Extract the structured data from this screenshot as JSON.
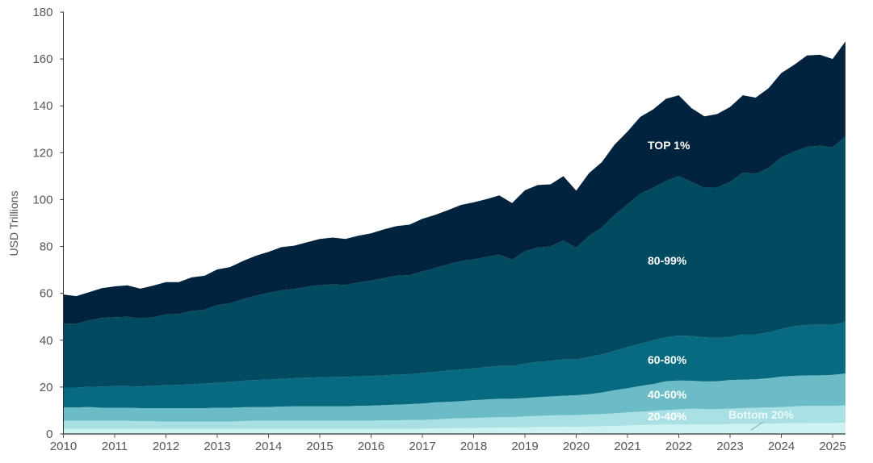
{
  "chart_data": {
    "type": "area",
    "stacked": true,
    "title": "",
    "xlabel": "",
    "ylabel": "USD Trillions",
    "ylim": [
      0,
      180
    ],
    "yticks": [
      "0",
      "20",
      "40",
      "60",
      "80",
      "100",
      "120",
      "140",
      "160",
      "180"
    ],
    "xticks": [
      "2010",
      "2011",
      "2012",
      "2013",
      "2014",
      "2015",
      "2016",
      "2017",
      "2018",
      "2019",
      "2020",
      "2021",
      "2022",
      "2023",
      "2024",
      "2025"
    ],
    "grid": false,
    "legend": "inline labels",
    "x": [
      "2010Q1",
      "2010Q2",
      "2010Q3",
      "2010Q4",
      "2011Q1",
      "2011Q2",
      "2011Q3",
      "2011Q4",
      "2012Q1",
      "2012Q2",
      "2012Q3",
      "2012Q4",
      "2013Q1",
      "2013Q2",
      "2013Q3",
      "2013Q4",
      "2014Q1",
      "2014Q2",
      "2014Q3",
      "2014Q4",
      "2015Q1",
      "2015Q2",
      "2015Q3",
      "2015Q4",
      "2016Q1",
      "2016Q2",
      "2016Q3",
      "2016Q4",
      "2017Q1",
      "2017Q2",
      "2017Q3",
      "2017Q4",
      "2018Q1",
      "2018Q2",
      "2018Q3",
      "2018Q4",
      "2019Q1",
      "2019Q2",
      "2019Q3",
      "2019Q4",
      "2020Q1",
      "2020Q2",
      "2020Q3",
      "2020Q4",
      "2021Q1",
      "2021Q2",
      "2021Q3",
      "2021Q4",
      "2022Q1",
      "2022Q2",
      "2022Q3",
      "2022Q4",
      "2023Q1",
      "2023Q2",
      "2023Q3",
      "2023Q4",
      "2024Q1",
      "2024Q2",
      "2024Q3",
      "2024Q4",
      "2025Q1",
      "2025Q2"
    ],
    "series": [
      {
        "name": "Bottom 20%",
        "color": "#cdf2f2",
        "values": [
          2.2,
          2.2,
          2.2,
          2.2,
          2.2,
          2.2,
          2.2,
          2.2,
          2.2,
          2.2,
          2.2,
          2.2,
          2.2,
          2.2,
          2.2,
          2.2,
          2.2,
          2.2,
          2.2,
          2.2,
          2.2,
          2.2,
          2.2,
          2.2,
          2.2,
          2.2,
          2.2,
          2.2,
          2.3,
          2.4,
          2.5,
          2.5,
          2.6,
          2.7,
          2.8,
          2.8,
          2.9,
          3.0,
          3.0,
          3.1,
          3.0,
          3.2,
          3.3,
          3.4,
          3.6,
          3.8,
          3.9,
          4.0,
          4.1,
          4.1,
          4.0,
          4.1,
          4.2,
          4.3,
          4.3,
          4.4,
          4.5,
          4.6,
          4.7,
          4.7,
          4.7,
          4.8
        ]
      },
      {
        "name": "20-40%",
        "color": "#a8e0e4",
        "values": [
          3.5,
          3.5,
          3.5,
          3.5,
          3.5,
          3.4,
          3.2,
          3.2,
          3.1,
          3.1,
          3.1,
          3.1,
          3.1,
          3.1,
          3.3,
          3.4,
          3.4,
          3.4,
          3.4,
          3.4,
          3.5,
          3.5,
          3.5,
          3.5,
          3.5,
          3.6,
          3.6,
          3.8,
          3.7,
          3.8,
          4.0,
          4.2,
          4.2,
          4.3,
          4.4,
          4.4,
          4.6,
          4.7,
          4.9,
          4.9,
          5.1,
          5.1,
          5.2,
          5.4,
          5.6,
          5.7,
          5.9,
          6.2,
          6.4,
          6.7,
          6.6,
          6.5,
          6.6,
          6.7,
          6.9,
          6.9,
          7.0,
          7.2,
          7.3,
          7.3,
          7.3,
          7.4
        ]
      },
      {
        "name": "40-60%",
        "color": "#6bbcc6",
        "values": [
          5.6,
          5.6,
          5.8,
          5.5,
          5.5,
          5.6,
          5.6,
          5.6,
          5.7,
          5.7,
          5.7,
          5.7,
          5.9,
          5.9,
          5.9,
          5.9,
          5.9,
          6.1,
          6.2,
          6.2,
          6.1,
          6.1,
          6.1,
          6.3,
          6.4,
          6.5,
          6.7,
          6.7,
          7.0,
          7.3,
          7.2,
          7.3,
          7.6,
          7.7,
          7.8,
          7.8,
          7.8,
          8.0,
          8.1,
          8.3,
          8.4,
          8.7,
          9.2,
          9.9,
          10.3,
          11.0,
          11.5,
          12.3,
          12.3,
          11.9,
          11.8,
          11.9,
          12.2,
          12.2,
          12.1,
          12.5,
          13.0,
          13.0,
          13.0,
          13.0,
          13.2,
          13.6
        ]
      },
      {
        "name": "60-80%",
        "color": "#076a80",
        "values": [
          8.5,
          8.5,
          8.6,
          9.0,
          9.2,
          9.2,
          9.2,
          9.5,
          9.8,
          9.9,
          10.2,
          10.5,
          10.6,
          11.0,
          11.3,
          11.5,
          11.7,
          11.8,
          12.0,
          12.2,
          12.4,
          12.5,
          12.5,
          12.6,
          12.6,
          12.7,
          12.8,
          12.8,
          13.0,
          13.0,
          13.3,
          13.5,
          13.6,
          13.8,
          14.0,
          14.0,
          14.7,
          15.0,
          15.2,
          15.5,
          15.2,
          15.8,
          16.3,
          16.8,
          17.5,
          18.0,
          18.7,
          18.7,
          19.2,
          19.1,
          18.8,
          18.5,
          18.4,
          19.3,
          19.2,
          19.5,
          20.3,
          21.2,
          21.5,
          21.6,
          21.3,
          22.0
        ]
      },
      {
        "name": "80-99%",
        "color": "#024a60",
        "values": [
          27.4,
          27.2,
          28.4,
          29.3,
          29.4,
          29.6,
          29.1,
          29.3,
          30.2,
          30.3,
          31.3,
          31.5,
          33.2,
          33.6,
          34.8,
          36.0,
          37.0,
          37.8,
          38.0,
          38.8,
          39.3,
          39.5,
          39.3,
          40.0,
          40.7,
          41.5,
          42.2,
          42.3,
          43.3,
          44.3,
          45.3,
          46.3,
          46.5,
          47.0,
          47.5,
          45.3,
          48.0,
          48.8,
          48.8,
          50.7,
          47.8,
          51.7,
          54.0,
          58.0,
          61.0,
          64.0,
          65.0,
          66.8,
          68.0,
          65.7,
          63.8,
          64.2,
          66.1,
          69.0,
          68.5,
          70.2,
          73.2,
          74.5,
          76.0,
          76.4,
          75.8,
          79.2
        ]
      },
      {
        "name": "TOP 1%",
        "color": "#02233d",
        "values": [
          12.3,
          11.8,
          12.0,
          12.7,
          13.2,
          13.4,
          12.7,
          13.5,
          13.8,
          13.6,
          14.3,
          14.5,
          15.2,
          15.4,
          16.3,
          17.0,
          17.5,
          18.4,
          18.5,
          19.0,
          19.7,
          20.0,
          19.6,
          20.0,
          20.2,
          20.8,
          21.2,
          21.5,
          22.5,
          22.7,
          23.2,
          23.9,
          24.3,
          24.7,
          25.3,
          24.2,
          26.0,
          26.7,
          26.5,
          27.5,
          24.3,
          26.8,
          28.0,
          30.0,
          31.0,
          32.8,
          33.5,
          35.0,
          34.5,
          31.5,
          30.5,
          31.3,
          32.0,
          33.0,
          32.5,
          34.0,
          36.0,
          37.0,
          39.0,
          38.8,
          37.7,
          40.5
        ]
      }
    ]
  }
}
